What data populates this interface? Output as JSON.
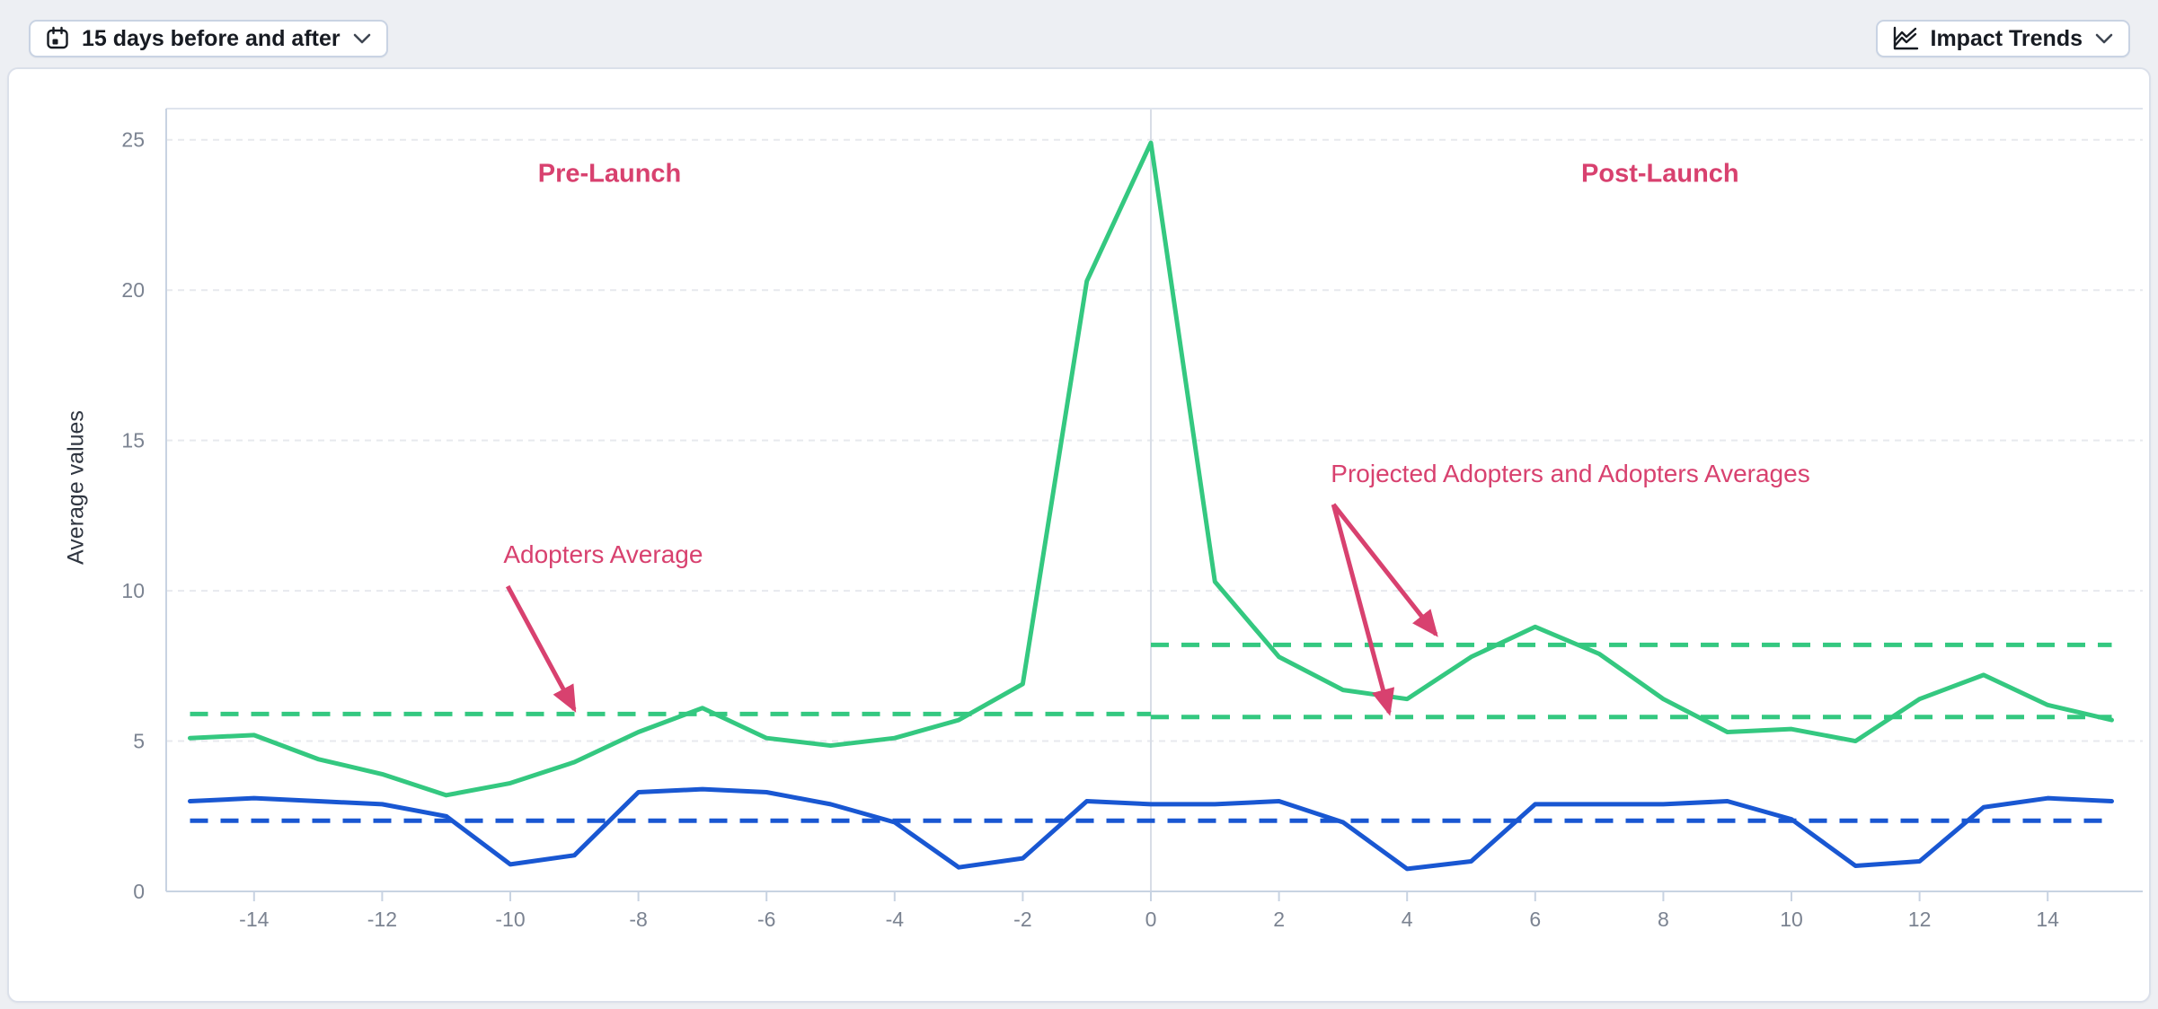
{
  "header": {
    "range_button": {
      "label": "15 days before and after"
    },
    "trends_button": {
      "label": "Impact Trends"
    }
  },
  "chart_data": {
    "type": "line",
    "title": "",
    "xlabel": "",
    "ylabel": "Average values",
    "x_range": [
      -15,
      15
    ],
    "y_range": [
      0,
      26
    ],
    "x_ticks": [
      -14,
      -12,
      -10,
      -8,
      -6,
      -4,
      -2,
      0,
      2,
      4,
      6,
      8,
      10,
      12,
      14
    ],
    "y_ticks": [
      0,
      5,
      10,
      15,
      20,
      25
    ],
    "grid": "horizontal-dashed, vertical line at x=0",
    "legend_position": "none",
    "x": [
      -15,
      -14,
      -13,
      -12,
      -11,
      -10,
      -9,
      -8,
      -7,
      -6,
      -5,
      -4,
      -3,
      -2,
      -1,
      0,
      1,
      2,
      3,
      4,
      5,
      6,
      7,
      8,
      9,
      10,
      11,
      12,
      13,
      14,
      15
    ],
    "series": [
      {
        "name": "Adopters",
        "color": "#34c880",
        "style": "solid",
        "values": [
          5.1,
          5.2,
          4.4,
          3.9,
          3.2,
          3.6,
          4.3,
          5.3,
          6.1,
          5.1,
          4.85,
          5.1,
          5.7,
          6.9,
          20.3,
          24.9,
          10.3,
          7.8,
          6.7,
          6.4,
          7.8,
          8.8,
          7.9,
          6.4,
          5.3,
          5.4,
          5.0,
          6.4,
          7.2,
          6.2,
          5.7
        ]
      },
      {
        "name": "Projected Adopters",
        "color": "#1957d2",
        "style": "solid",
        "values": [
          3.0,
          3.1,
          3.0,
          2.9,
          2.5,
          0.9,
          1.2,
          3.3,
          3.4,
          3.3,
          2.9,
          2.3,
          0.8,
          1.1,
          3.0,
          2.9,
          2.9,
          3.0,
          2.3,
          0.75,
          1.0,
          2.9,
          2.9,
          2.9,
          3.0,
          2.4,
          0.85,
          1.0,
          2.8,
          3.1,
          3.0
        ]
      }
    ],
    "reference_lines": [
      {
        "label": "Adopters average (pre-launch)",
        "color": "#34c880",
        "value": 5.9,
        "span": [
          -15,
          0
        ]
      },
      {
        "label": "Adopters average (post-launch)",
        "color": "#34c880",
        "value": 8.2,
        "span": [
          0,
          15
        ]
      },
      {
        "label": "Projected adopters average (post-launch)",
        "color": "#34c880",
        "value": 5.8,
        "span": [
          0,
          15
        ]
      },
      {
        "label": "Projected adopters average",
        "color": "#1957d2",
        "value": 2.35,
        "span": [
          -15,
          15
        ]
      }
    ],
    "annotation_color": "#d8416f",
    "annotations": {
      "region_labels": [
        {
          "text": "Pre-Launch",
          "day": -8.45,
          "value": 23.6
        },
        {
          "text": "Post-Launch",
          "day": 7.95,
          "value": 23.6
        }
      ],
      "callouts": [
        {
          "text": "Adopters Average",
          "day": -8.55,
          "value": 10.93,
          "arrows": [
            {
              "from": [
                -10.04,
                10.15
              ],
              "to": [
                -9.0,
                6.05
              ]
            }
          ]
        },
        {
          "text": "Projected Adopters and Adopters Averages",
          "day": 6.55,
          "value": 13.62,
          "arrows": [
            {
              "from": [
                2.85,
                12.87
              ],
              "to": [
                4.45,
                8.55
              ]
            },
            {
              "from": [
                2.85,
                12.87
              ],
              "to": [
                3.72,
                5.95
              ]
            }
          ]
        }
      ]
    }
  }
}
